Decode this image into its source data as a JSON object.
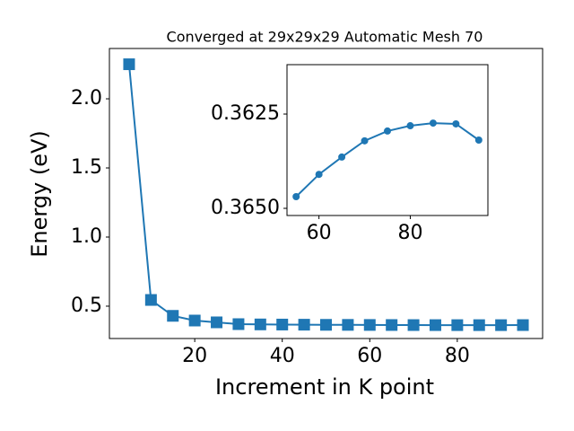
{
  "chart_data": [
    {
      "type": "line",
      "title": "Converged at 29x29x29 Automatic Mesh 70",
      "x_label": "Increment in K point",
      "y_label": "Energy (eV)",
      "x": [
        5,
        10,
        15,
        20,
        25,
        30,
        35,
        40,
        45,
        50,
        55,
        60,
        65,
        70,
        75,
        80,
        85,
        90,
        95
      ],
      "series": [
        {
          "color": "#1f77b4",
          "marker": "square",
          "values": [
            2.25,
            0.545,
            0.43,
            0.396,
            0.383,
            0.37,
            0.368,
            0.367,
            0.366,
            0.365,
            0.36469,
            0.3641,
            0.36364,
            0.36321,
            0.36295,
            0.36281,
            0.36274,
            0.36276,
            0.36319
          ]
        }
      ],
      "xlim": [
        0.5,
        99.5
      ],
      "xticks": [
        20,
        40,
        60,
        80
      ],
      "ylim": [
        0.266,
        2.364
      ],
      "yticks": [
        0.5,
        {
          "value": 1,
          "label": "1.0"
        },
        1.5,
        {
          "value": 2,
          "label": "2.0"
        }
      ]
    },
    {
      "type": "line",
      "x": [
        55,
        60,
        65,
        70,
        75,
        80,
        85,
        90,
        95
      ],
      "series": [
        {
          "color": "#1f77b4",
          "marker": "circle",
          "values": [
            0.36469,
            0.3641,
            0.36364,
            0.36321,
            0.36295,
            0.36281,
            0.36274,
            0.36276,
            0.36319
          ]
        }
      ],
      "xlim": [
        53,
        97
      ],
      "xticks": [
        60,
        80
      ],
      "ylim": [
        0.36519,
        0.36119
      ],
      "yticks": [
        0.3625,
        {
          "value": 0.365,
          "label": "0.3650"
        }
      ]
    }
  ]
}
